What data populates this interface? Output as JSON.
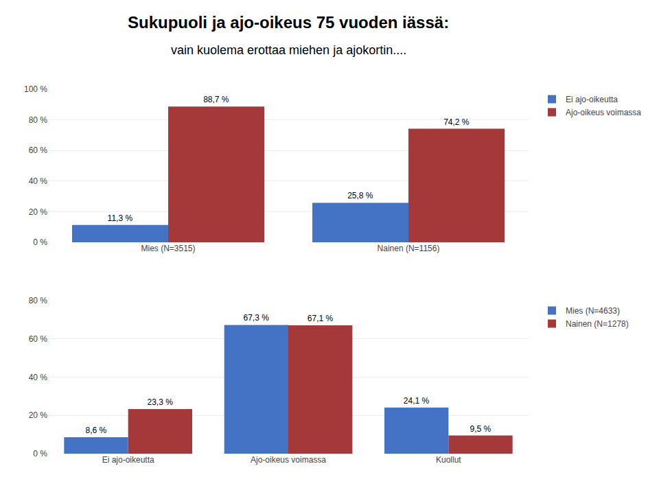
{
  "chart_data": [
    {
      "type": "bar",
      "title": "Sukupuoli ja ajo-oikeus 75 vuoden iässä:",
      "subtitle": "vain kuolema erottaa miehen ja ajokortin....",
      "categories": [
        "Mies (N=3515)",
        "Nainen (N=1156)"
      ],
      "series": [
        {
          "name": "Ei ajo-oikeutta",
          "color": "#4472C4",
          "values": [
            11.3,
            25.8
          ],
          "value_labels": [
            "11,3 %",
            "25,8 %"
          ]
        },
        {
          "name": "Ajo-oikeus voimassa",
          "color": "#A5393A",
          "values": [
            88.7,
            74.2
          ],
          "value_labels": [
            "88,7 %",
            "74,2 %"
          ]
        }
      ],
      "ylim": [
        0,
        100
      ],
      "yticks": [
        {
          "value": 0,
          "label": "0 %"
        },
        {
          "value": 20,
          "label": "20 %"
        },
        {
          "value": 40,
          "label": "40 %"
        },
        {
          "value": 60,
          "label": "60 %"
        },
        {
          "value": 80,
          "label": "80 %"
        },
        {
          "value": 100,
          "label": "100 %"
        }
      ],
      "grid": true,
      "legend": "right",
      "data_labels": true
    },
    {
      "type": "bar",
      "categories": [
        "Ei ajo-oikeutta",
        "Ajo-oikeus voimassa",
        "Kuollut"
      ],
      "series": [
        {
          "name": "Mies (N=4633)",
          "color": "#4472C4",
          "values": [
            8.6,
            67.3,
            24.1
          ],
          "value_labels": [
            "8,6 %",
            "67,3 %",
            "24,1 %"
          ]
        },
        {
          "name": "Nainen (N=1278)",
          "color": "#A5393A",
          "values": [
            23.3,
            67.1,
            9.5
          ],
          "value_labels": [
            "23,3 %",
            "67,1 %",
            "9,5 %"
          ]
        }
      ],
      "ylim": [
        0,
        80
      ],
      "yticks": [
        {
          "value": 0,
          "label": "0 %"
        },
        {
          "value": 20,
          "label": "20 %"
        },
        {
          "value": 40,
          "label": "40 %"
        },
        {
          "value": 60,
          "label": "60 %"
        },
        {
          "value": 80,
          "label": "80 %"
        }
      ],
      "grid": true,
      "legend": "right",
      "data_labels": true
    }
  ]
}
